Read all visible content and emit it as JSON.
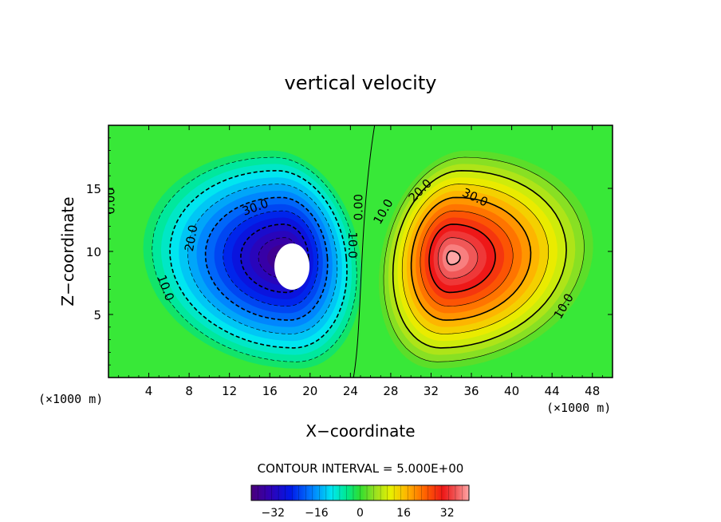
{
  "chart_data": {
    "type": "heatmap",
    "title": "vertical velocity",
    "xlabel": "X−coordinate",
    "ylabel": "Z−coordinate",
    "x_unit": "(×1000 m)",
    "y_unit": "(×1000 m)",
    "xlim": [
      0,
      50
    ],
    "ylim": [
      0,
      20
    ],
    "x_ticks": [
      4,
      8,
      12,
      16,
      20,
      24,
      28,
      32,
      36,
      40,
      44,
      48
    ],
    "y_ticks": [
      5,
      10,
      15
    ],
    "contour_interval_text": "CONTOUR INTERVAL = 5.000E+00",
    "contour_interval": 5,
    "colorbar": {
      "min": -40,
      "max": 40,
      "tick_values": [
        -32,
        -16,
        0,
        16,
        32
      ],
      "tick_labels": [
        "−32",
        "−16",
        "0",
        "16",
        "32"
      ]
    },
    "downdraft": {
      "center_x": 17.5,
      "center_z": 9.5,
      "min": -40
    },
    "updraft": {
      "center_x": 34,
      "center_z": 9.5,
      "max": 40
    },
    "contour_labels": [
      {
        "text": "0.00",
        "x": 0.6,
        "z": 14.0,
        "angle": -90
      },
      {
        "text": "10.0",
        "x": 5.3,
        "z": 7.0,
        "angle": 70
      },
      {
        "text": "20.0",
        "x": 8.6,
        "z": 11.0,
        "angle": -80
      },
      {
        "text": "30.0",
        "x": 14.7,
        "z": 13.2,
        "angle": -20
      },
      {
        "text": "10.0",
        "x": 23.8,
        "z": 10.5,
        "angle": 90
      },
      {
        "text": "0.00",
        "x": 25.2,
        "z": 13.5,
        "angle": -90
      },
      {
        "text": "10.0",
        "x": 27.6,
        "z": 13.0,
        "angle": -60
      },
      {
        "text": "20.0",
        "x": 31.2,
        "z": 14.6,
        "angle": -45
      },
      {
        "text": "30.0",
        "x": 36.2,
        "z": 14.0,
        "angle": 25
      },
      {
        "text": "10.0",
        "x": 45.5,
        "z": 5.5,
        "angle": -60
      }
    ]
  }
}
